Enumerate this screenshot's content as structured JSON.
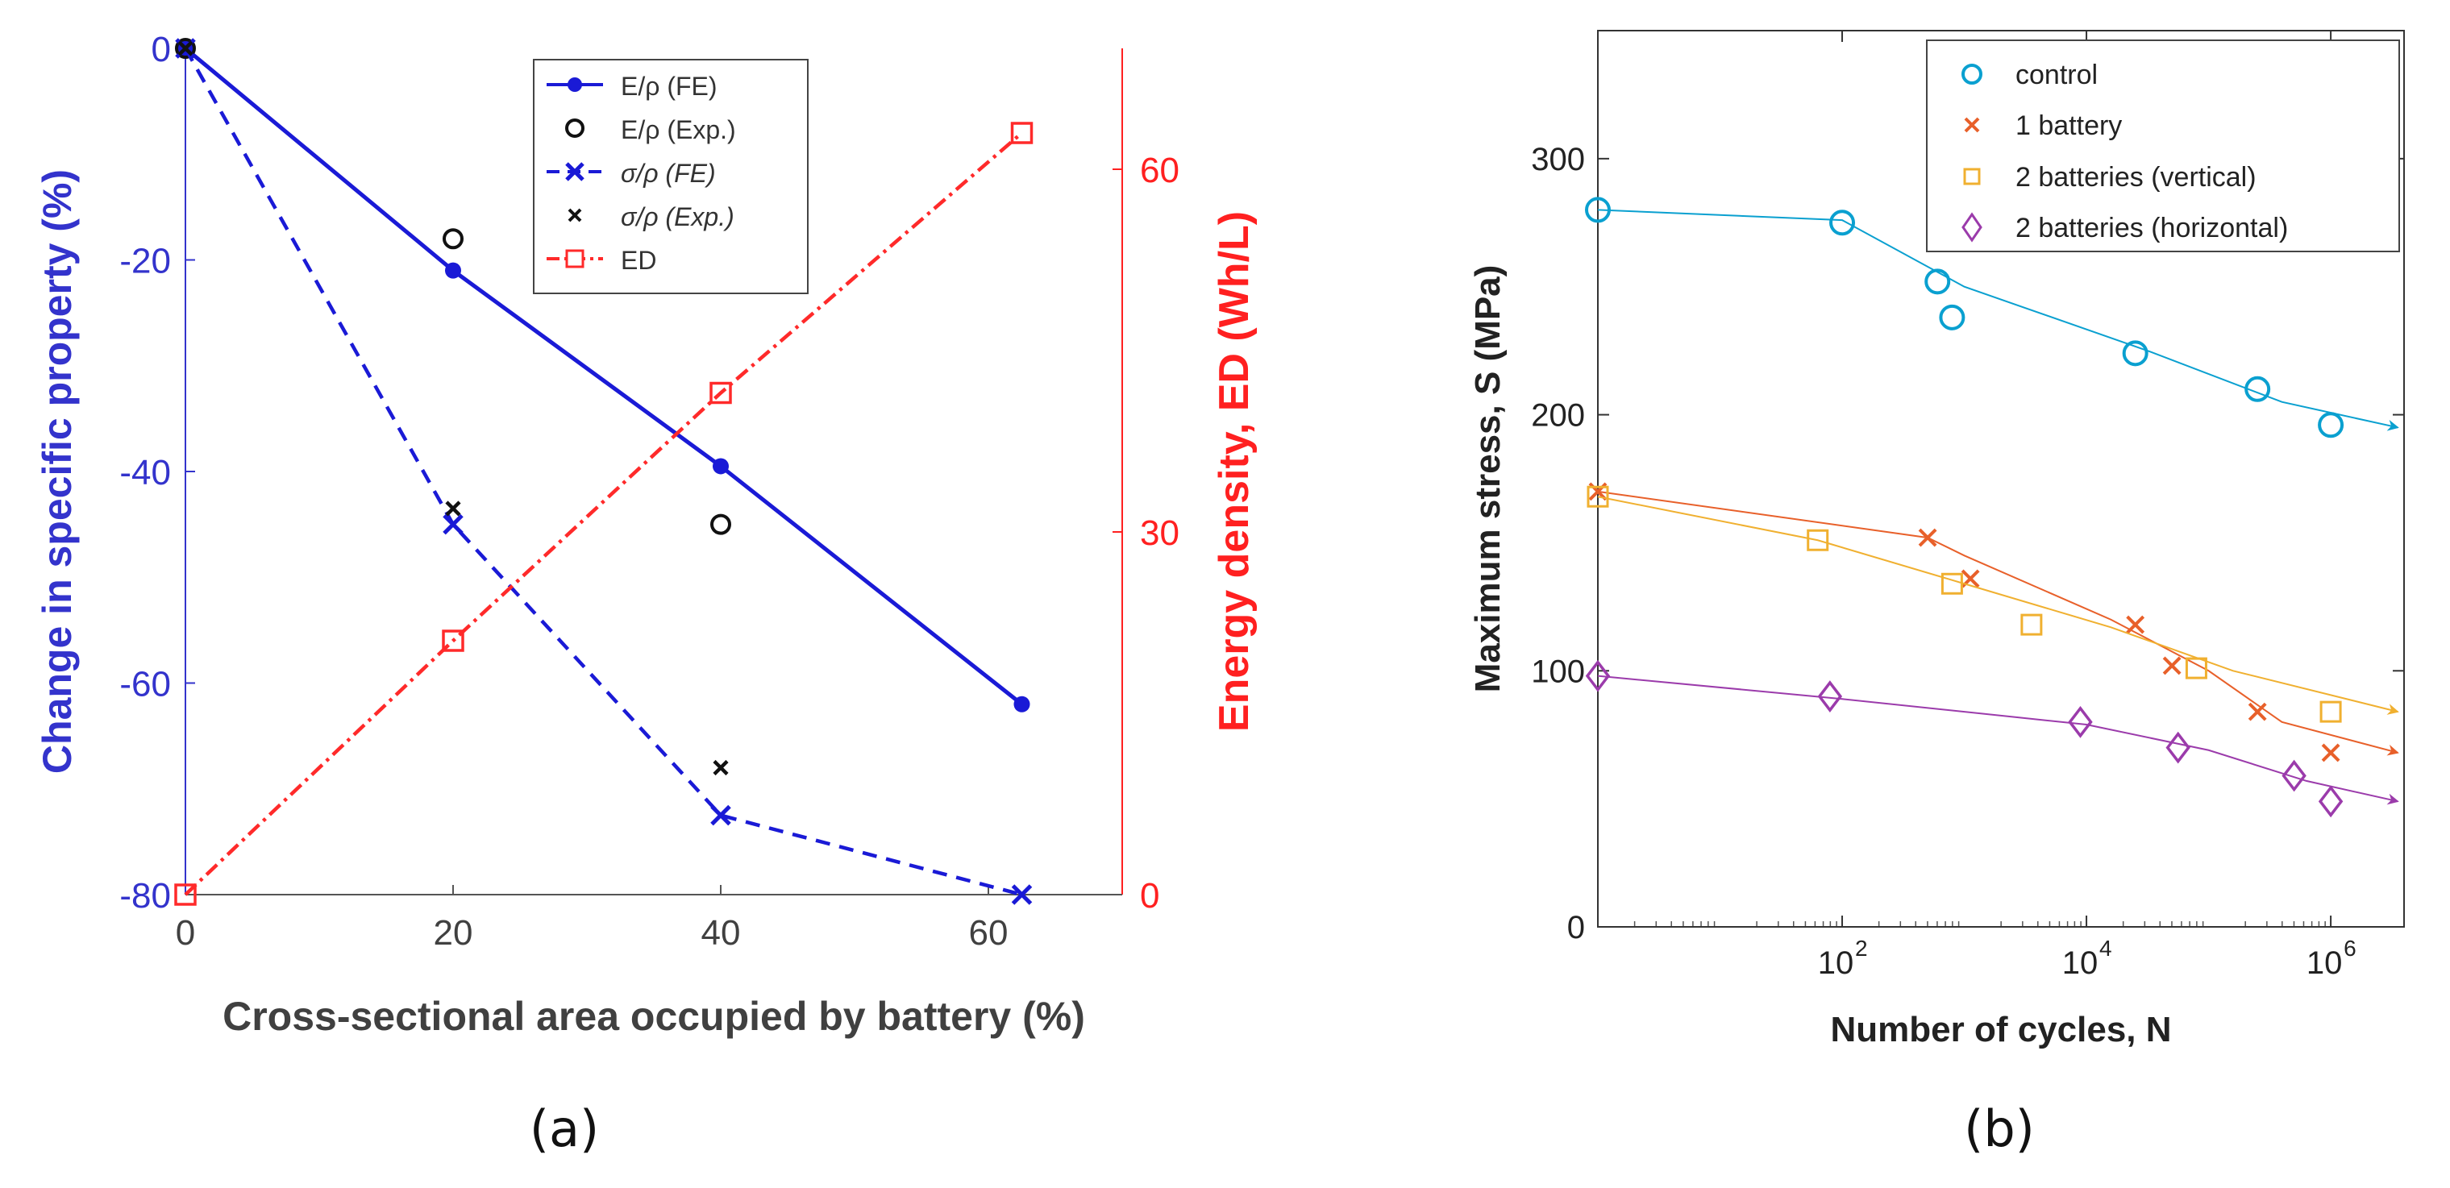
{
  "chart_data": [
    {
      "type": "line",
      "panel_label": "(a)",
      "xlabel": "Cross-sectional area occupied by battery (%)",
      "ylabel_left": "Change in specific property (%)",
      "ylabel_right": "Energy density, ED (Wh/L)",
      "xlim": [
        0,
        70
      ],
      "ylim_left": [
        -80,
        0
      ],
      "ylim_right": [
        0,
        70
      ],
      "x_ticks": [
        0,
        20,
        40,
        60
      ],
      "x_tick_labels": [
        "0",
        "20",
        "40",
        "60"
      ],
      "y_left_ticks": [
        0,
        -20,
        -40,
        -60,
        -80
      ],
      "y_left_tick_labels": [
        "0",
        "-20",
        "-40",
        "-60",
        "-80"
      ],
      "y_right_ticks": [
        0,
        30,
        60
      ],
      "y_right_tick_labels": [
        "0",
        "30",
        "60"
      ],
      "legend_position": "top-right",
      "colors": {
        "left_axis": "#3333cc",
        "right_axis": "#ff2020",
        "blue": "#1a1ad6",
        "red": "#ff2a2a",
        "black": "#111111"
      },
      "series": [
        {
          "name": "E/ρ (FE)",
          "legend_label": "E/ρ (FE)",
          "axis": "left",
          "style": "solid-dot",
          "x": [
            0,
            20,
            40,
            62.5
          ],
          "y": [
            0,
            -21,
            -39.5,
            -62
          ]
        },
        {
          "name": "E/ρ (Exp.)",
          "legend_label": "E/ρ (Exp.)",
          "axis": "left",
          "style": "open-circle",
          "x": [
            0,
            20,
            40
          ],
          "y": [
            0,
            -18,
            -45
          ]
        },
        {
          "name": "σ/ρ (FE)",
          "legend_label": "σ/ρ (FE)",
          "axis": "left",
          "style": "dashed-x",
          "x": [
            0,
            20,
            40,
            62.5
          ],
          "y": [
            0,
            -45,
            -72.5,
            -80
          ]
        },
        {
          "name": "σ/ρ (Exp.)",
          "legend_label": "σ/ρ (Exp.)",
          "axis": "left",
          "style": "small-x",
          "x": [
            0,
            20,
            40
          ],
          "y": [
            0,
            -43.5,
            -68
          ]
        },
        {
          "name": "ED",
          "legend_label": "ED",
          "axis": "right",
          "style": "dashdot-square",
          "x": [
            0,
            20,
            40,
            62.5
          ],
          "y": [
            0,
            21,
            41.5,
            63
          ]
        }
      ]
    },
    {
      "type": "line",
      "panel_label": "(b)",
      "xlabel": "Number of cycles, N",
      "ylabel": "Maximum stress, S (MPa)",
      "x_scale": "log",
      "xlim_log10": [
        0,
        6.6
      ],
      "ylim": [
        0,
        350
      ],
      "x_ticks_log10": [
        2,
        4,
        6
      ],
      "x_tick_labels": [
        "10",
        "10",
        "10"
      ],
      "x_tick_exponents": [
        "2",
        "4",
        "6"
      ],
      "y_ticks": [
        0,
        100,
        200,
        300
      ],
      "y_tick_labels": [
        "0",
        "100",
        "200",
        "300"
      ],
      "legend_position": "top-right",
      "colors": {
        "control": "#0aa0d0",
        "one_battery": "#e8602a",
        "vertical": "#f0b030",
        "horizontal": "#9b3bab"
      },
      "series": [
        {
          "name": "control",
          "marker": "circle",
          "runout_arrow": true,
          "x_log10": [
            0,
            2,
            2.78,
            2.9,
            4.4,
            5.4,
            6
          ],
          "y": [
            280,
            275,
            252,
            238,
            224,
            210,
            196
          ],
          "fit_x_log10": [
            0,
            2,
            3,
            4.5,
            5.6,
            6.55
          ],
          "fit_y": [
            280,
            276,
            250,
            225,
            205,
            195
          ]
        },
        {
          "name": "1 battery",
          "marker": "x",
          "runout_arrow": true,
          "x_log10": [
            0,
            2.7,
            3.05,
            4.4,
            4.7,
            5.4,
            6
          ],
          "y": [
            170,
            152,
            136,
            118,
            102,
            84,
            68
          ],
          "fit_x_log10": [
            0,
            2.7,
            3,
            4.2,
            5,
            5.6,
            6.55
          ],
          "fit_y": [
            170,
            152,
            145,
            120,
            100,
            80,
            68
          ]
        },
        {
          "name": "2 batteries (vertical)",
          "marker": "square",
          "runout_arrow": true,
          "x_log10": [
            0,
            1.8,
            2.9,
            3.55,
            4.9,
            6
          ],
          "y": [
            168,
            151,
            134,
            118,
            101,
            84
          ],
          "fit_x_log10": [
            0,
            1.8,
            3,
            4.2,
            5.2,
            6.55
          ],
          "fit_y": [
            168,
            151,
            134,
            117,
            100,
            84
          ]
        },
        {
          "name": "2 batteries (horizontal)",
          "marker": "diamond",
          "runout_arrow": true,
          "x_log10": [
            0,
            1.9,
            3.95,
            4.75,
            5.7,
            6
          ],
          "y": [
            98,
            90,
            80,
            70,
            59,
            49
          ],
          "fit_x_log10": [
            0,
            2,
            4,
            5,
            5.8,
            6.55
          ],
          "fit_y": [
            98,
            89,
            79,
            69,
            57,
            49
          ]
        }
      ]
    }
  ]
}
